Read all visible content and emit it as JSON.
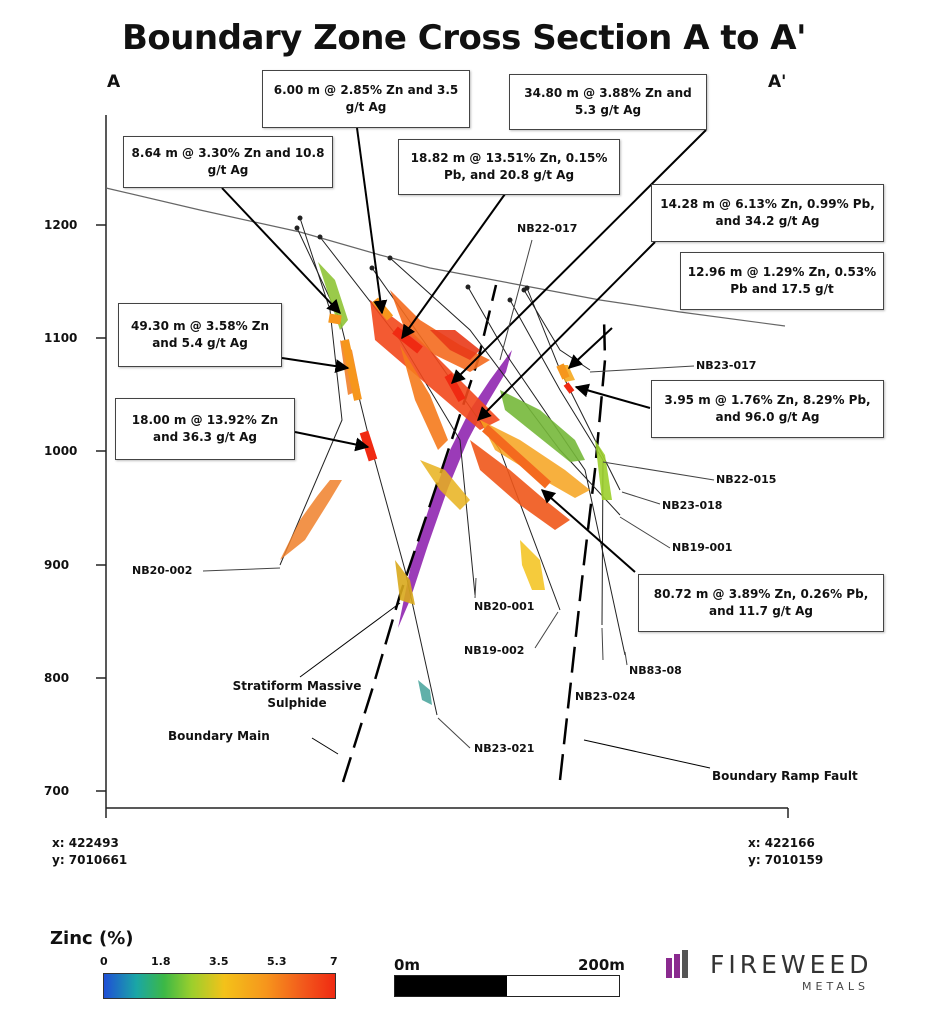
{
  "title": "Boundary Zone Cross Section A to A'",
  "section_ends": {
    "left": "A",
    "right": "A'"
  },
  "y_axis": {
    "ticks": [
      "1200",
      "1100",
      "1000",
      "900",
      "800",
      "700"
    ]
  },
  "coords": {
    "left": {
      "x": "x: 422493",
      "y": "y: 7010661"
    },
    "right": {
      "x": "x: 422166",
      "y": "y: 7010159"
    }
  },
  "callouts": [
    {
      "text": "6.00 m @ 2.85% Zn and 3.5 g/t Ag"
    },
    {
      "text": "34.80 m @ 3.88% Zn and 5.3 g/t Ag"
    },
    {
      "text": "8.64 m @ 3.30% Zn and 10.8 g/t Ag"
    },
    {
      "text": "18.82 m @ 13.51% Zn, 0.15% Pb, and 20.8 g/t Ag"
    },
    {
      "text": "14.28 m @ 6.13% Zn, 0.99% Pb, and 34.2 g/t Ag"
    },
    {
      "text": "12.96 m @ 1.29% Zn, 0.53% Pb and 17.5 g/t"
    },
    {
      "text": "49.30 m @ 3.58% Zn and 5.4 g/t Ag"
    },
    {
      "text": "3.95 m @ 1.76% Zn, 8.29% Pb, and 96.0 g/t Ag"
    },
    {
      "text": "18.00 m @ 13.92% Zn and 36.3 g/t Ag"
    },
    {
      "text": "80.72 m @ 3.89% Zn, 0.26% Pb, and 11.7 g/t Ag"
    }
  ],
  "drillholes": [
    "NB22-017",
    "NB23-017",
    "NB22-015",
    "NB23-018",
    "NB19-001",
    "NB20-002",
    "NB20-001",
    "NB19-002",
    "NB83-08",
    "NB23-024",
    "NB23-021"
  ],
  "features": {
    "stratiform": "Stratiform Massive Sulphide",
    "boundary_main": "Boundary Main",
    "ramp_fault": "Boundary Ramp Fault"
  },
  "legend": {
    "title": "Zinc (%)",
    "ticks": [
      "0",
      "1.8",
      "3.5",
      "5.3",
      "7"
    ],
    "colors": [
      "#1f4fd6",
      "#3cb846",
      "#f3c21a",
      "#f6961c",
      "#f02a12"
    ]
  },
  "scale": {
    "start": "0m",
    "end": "200m"
  },
  "logo": {
    "name": "FIREWEED",
    "sub": "METALS",
    "accent": "#8a2a8f"
  }
}
